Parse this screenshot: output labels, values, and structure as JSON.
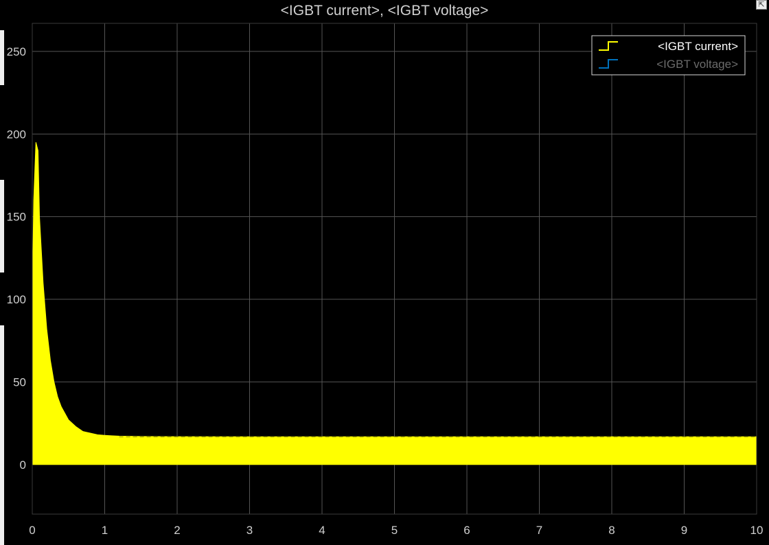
{
  "window": {
    "title": "<IGBT current>, <IGBT voltage>",
    "corner_icon": "restore-icon"
  },
  "colors": {
    "background": "#000000",
    "axes_background": "#000000",
    "grid": "#555555",
    "tick_label": "#d0d0d0",
    "legend_border": "#d9d9d9",
    "current": "#ffff00",
    "voltage": "#0072bd",
    "legend_inactive_text": "#6b6b6b"
  },
  "chart_data": {
    "type": "line",
    "title": "<IGBT current>, <IGBT voltage>",
    "xlabel": "",
    "ylabel": "",
    "xlim": [
      0,
      10
    ],
    "ylim": [
      -30,
      267
    ],
    "xticks": [
      0,
      1,
      2,
      3,
      4,
      5,
      6,
      7,
      8,
      9,
      10
    ],
    "yticks": [
      0,
      50,
      100,
      150,
      200,
      250
    ],
    "grid": true,
    "legend_position": "top-right",
    "series": [
      {
        "name": "<IGBT current>",
        "color": "#ffff00",
        "style": "stairs",
        "band": true,
        "lower": 0,
        "upper_envelope": {
          "x": [
            0.0,
            0.02,
            0.05,
            0.08,
            0.1,
            0.15,
            0.2,
            0.25,
            0.3,
            0.35,
            0.4,
            0.5,
            0.6,
            0.7,
            0.8,
            0.9,
            1.0,
            1.1,
            1.2,
            1.5,
            2.0,
            3.0,
            5.0,
            7.0,
            9.0,
            10.0
          ],
          "y": [
            100,
            160,
            195,
            190,
            150,
            110,
            82,
            63,
            50,
            41,
            35,
            27,
            23,
            20,
            19,
            18,
            17.7,
            17.4,
            17.2,
            17.0,
            16.9,
            16.8,
            16.8,
            16.8,
            16.8,
            16.8
          ]
        }
      },
      {
        "name": "<IGBT voltage>",
        "color": "#0072bd",
        "style": "stairs",
        "visible": false
      }
    ]
  }
}
